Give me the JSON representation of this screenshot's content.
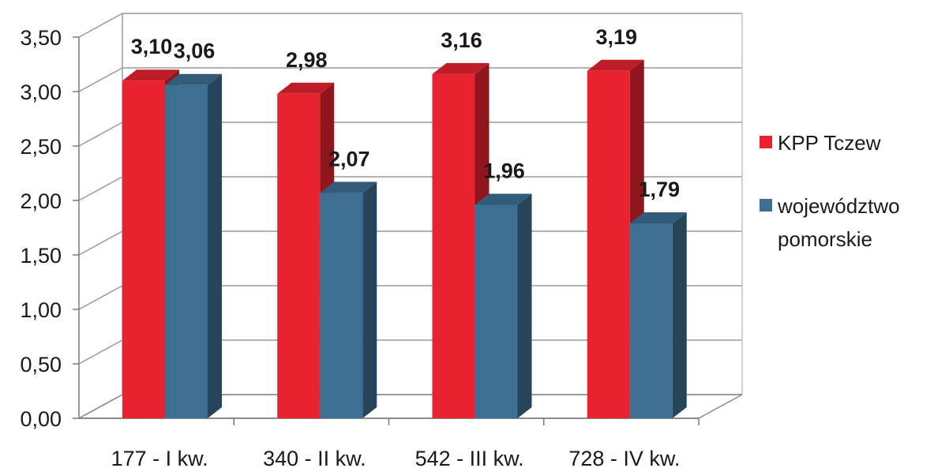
{
  "chart_data": {
    "type": "bar",
    "categories": [
      "177 - I kw.",
      "340 - II kw.",
      "542 - III kw.",
      "728 - IV kw."
    ],
    "series": [
      {
        "name": "KPP Tczew",
        "values": [
          3.1,
          2.98,
          3.16,
          3.19
        ],
        "color": "#e8232f"
      },
      {
        "name": "województwo pomorskie",
        "values": [
          3.06,
          2.07,
          1.96,
          1.79
        ],
        "color": "#3d6f93"
      }
    ],
    "data_labels": [
      [
        "3,10",
        "2,98",
        "3,16",
        "3,19"
      ],
      [
        "3,06",
        "2,07",
        "1,96",
        "1,79"
      ]
    ],
    "ylim": [
      0,
      3.5
    ],
    "y_ticks": [
      "0,00",
      "0,50",
      "1,00",
      "1,50",
      "2,00",
      "2,50",
      "3,00",
      "3,50"
    ],
    "legend_lines": [
      [
        "KPP Tczew"
      ],
      [
        "województwo",
        "pomorskie"
      ]
    ],
    "legend_position": "right",
    "grid": true,
    "style": "3d-column"
  }
}
